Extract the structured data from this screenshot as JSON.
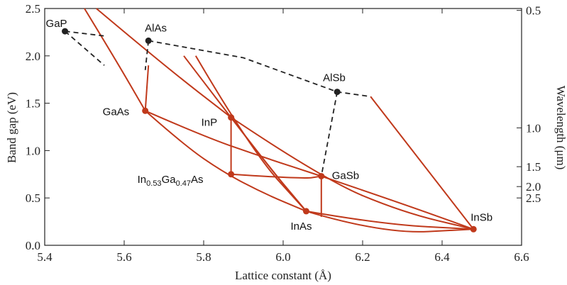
{
  "chart_data": {
    "type": "scatter",
    "xlabel": "Lattice constant (Å)",
    "ylabel": "Band gap (eV)",
    "y2label": "Wavelength (μm)",
    "xlim": [
      5.4,
      6.6
    ],
    "ylim": [
      0.0,
      2.5
    ],
    "x_ticks": [
      "5.4",
      "5.6",
      "5.8",
      "6.0",
      "6.2",
      "6.4",
      "6.6"
    ],
    "y_ticks": [
      "0.0",
      "0.5",
      "1.0",
      "1.5",
      "2.0",
      "2.5"
    ],
    "y2_ticks": [
      {
        "label": "0.5",
        "energy": 2.48
      },
      {
        "label": "1.0",
        "energy": 1.24
      },
      {
        "label": "1.5",
        "energy": 0.83
      },
      {
        "label": "2.0",
        "energy": 0.62
      },
      {
        "label": "2.5",
        "energy": 0.5
      }
    ],
    "colors": {
      "direct": "#c0391b",
      "indirect": "#222222"
    },
    "points": [
      {
        "label": "GaP",
        "x": 5.451,
        "y": 2.26,
        "gap": "indirect"
      },
      {
        "label": "AlAs",
        "x": 5.661,
        "y": 2.16,
        "gap": "indirect"
      },
      {
        "label": "AlSb",
        "x": 6.136,
        "y": 1.62,
        "gap": "indirect"
      },
      {
        "label": "GaAs",
        "x": 5.653,
        "y": 1.42,
        "gap": "direct"
      },
      {
        "label": "InP",
        "x": 5.869,
        "y": 1.35,
        "gap": "direct"
      },
      {
        "label": "In0.53Ga0.47As",
        "label_main": "In",
        "label_sub1": "0.53",
        "label_mid": "Ga",
        "label_sub2": "0.47",
        "label_end": "As",
        "x": 5.869,
        "y": 0.75,
        "gap": "direct"
      },
      {
        "label": "GaSb",
        "x": 6.096,
        "y": 0.73,
        "gap": "direct"
      },
      {
        "label": "InAs",
        "x": 6.058,
        "y": 0.36,
        "gap": "direct"
      },
      {
        "label": "InSb",
        "x": 6.479,
        "y": 0.17,
        "gap": "direct"
      }
    ],
    "direct_curves": [
      {
        "name": "GaAs-InAs",
        "points": [
          [
            5.653,
            1.42
          ],
          [
            5.75,
            1.06
          ],
          [
            5.85,
            0.77
          ],
          [
            5.95,
            0.55
          ],
          [
            6.058,
            0.36
          ]
        ]
      },
      {
        "name": "InP-InAs",
        "points": [
          [
            5.869,
            1.35
          ],
          [
            5.96,
            0.85
          ],
          [
            6.058,
            0.36
          ]
        ]
      },
      {
        "name": "GaAs-GaSb",
        "points": [
          [
            5.653,
            1.42
          ],
          [
            5.8,
            1.15
          ],
          [
            5.95,
            0.93
          ],
          [
            6.096,
            0.73
          ]
        ]
      },
      {
        "name": "InAs-InSb",
        "points": [
          [
            6.058,
            0.36
          ],
          [
            6.25,
            0.22
          ],
          [
            6.479,
            0.17
          ]
        ]
      },
      {
        "name": "GaSb-InSb",
        "points": [
          [
            6.096,
            0.73
          ],
          [
            6.3,
            0.44
          ],
          [
            6.479,
            0.17
          ]
        ]
      },
      {
        "name": "InP-InSb",
        "points": [
          [
            5.869,
            1.35
          ],
          [
            6.1,
            0.7
          ],
          [
            6.3,
            0.35
          ],
          [
            6.479,
            0.17
          ]
        ]
      },
      {
        "name": "InGaAs-GaSb",
        "points": [
          [
            5.869,
            0.75
          ],
          [
            6.05,
            0.7
          ],
          [
            6.096,
            0.73
          ]
        ]
      },
      {
        "name": "GaAs-AlAs",
        "points": [
          [
            5.653,
            1.42
          ],
          [
            5.661,
            1.9
          ]
        ]
      },
      {
        "name": "InP-InGaAs",
        "points": [
          [
            5.869,
            1.35
          ],
          [
            5.869,
            0.75
          ]
        ]
      },
      {
        "name": "GaSb-vert",
        "points": [
          [
            6.096,
            0.73
          ],
          [
            6.096,
            0.3
          ]
        ]
      },
      {
        "name": "InAs-InSb-lower",
        "points": [
          [
            6.058,
            0.36
          ],
          [
            6.25,
            0.12
          ],
          [
            6.479,
            0.17
          ]
        ]
      },
      {
        "name": "InAs-AlAs-dir",
        "points": [
          [
            5.75,
            2.0
          ],
          [
            5.95,
            0.9
          ],
          [
            6.058,
            0.36
          ]
        ]
      },
      {
        "name": "AlSb-InSb-dir",
        "points": [
          [
            6.22,
            1.57
          ],
          [
            6.479,
            0.17
          ]
        ]
      },
      {
        "name": "GaP-GaAs-dir",
        "points": [
          [
            5.5,
            2.5
          ],
          [
            5.58,
            1.95
          ],
          [
            5.653,
            1.42
          ]
        ]
      },
      {
        "name": "GaP-InP-dir",
        "points": [
          [
            5.53,
            2.5
          ],
          [
            5.7,
            1.9
          ],
          [
            5.869,
            1.35
          ]
        ]
      },
      {
        "name": "AlAs-InAs-dir2",
        "points": [
          [
            5.78,
            2.0
          ],
          [
            5.92,
            1.0
          ],
          [
            6.058,
            0.36
          ]
        ]
      }
    ],
    "indirect_curves": [
      {
        "name": "GaP-AlAs",
        "points": [
          [
            5.451,
            2.26
          ],
          [
            5.55,
            2.21
          ]
        ]
      },
      {
        "name": "GaP-GaAs-ind",
        "points": [
          [
            5.451,
            2.26
          ],
          [
            5.55,
            1.9
          ]
        ]
      },
      {
        "name": "AlAs-GaAs-ind",
        "points": [
          [
            5.661,
            2.16
          ],
          [
            5.653,
            1.85
          ]
        ]
      },
      {
        "name": "AlAs-AlSb",
        "points": [
          [
            5.661,
            2.16
          ],
          [
            5.9,
            1.98
          ],
          [
            6.136,
            1.62
          ],
          [
            6.22,
            1.57
          ]
        ]
      },
      {
        "name": "AlSb-GaSb",
        "points": [
          [
            6.136,
            1.62
          ],
          [
            6.096,
            0.73
          ]
        ]
      }
    ]
  }
}
